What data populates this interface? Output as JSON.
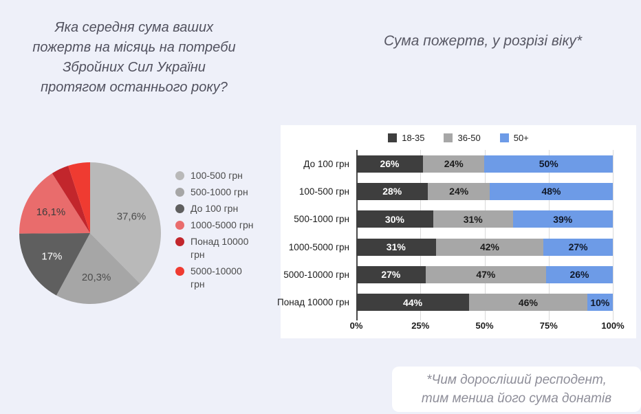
{
  "left_panel": {
    "title_lines": [
      "Яка середня сума ваших",
      "пожертв на місяць на потреби",
      "Збройних Сил України",
      "протягом останнього року?"
    ]
  },
  "right_panel": {
    "title": "Сума пожертв, у розрізі віку*",
    "footnote_lines": [
      "*Чим доросліший респодент,",
      "тим менша його сума донатів"
    ]
  },
  "chart_data": [
    {
      "type": "pie",
      "unit": "%",
      "start_angle_deg": 0,
      "legend_position": "right",
      "slices": [
        {
          "label": "100-500 грн",
          "value": 37.6,
          "display": "37,6%",
          "color": "#b9b9b9",
          "label_color": "#4d4d4d"
        },
        {
          "label": "500-1000 грн",
          "value": 20.3,
          "display": "20,3%",
          "color": "#a6a6a6",
          "label_color": "#4d4d4d"
        },
        {
          "label": "До 100 грн",
          "value": 17,
          "display": "17%",
          "color": "#5f5f5f",
          "label_color": "#ffffff"
        },
        {
          "label": "1000-5000 грн",
          "value": 16.1,
          "display": "16,1%",
          "color": "#e96c6c",
          "label_color": "#3d3d3d"
        },
        {
          "label": "Понад 10000 грн",
          "value": 4,
          "display": "",
          "color": "#c2262c",
          "label_color": ""
        },
        {
          "label": "5000-10000 грн",
          "value": 5,
          "display": "",
          "color": "#ef3b31",
          "label_color": ""
        }
      ]
    },
    {
      "type": "bar",
      "orientation": "horizontal-stacked",
      "legend_position": "top",
      "grid": true,
      "xlim": [
        0,
        100
      ],
      "x_ticks": [
        "0%",
        "25%",
        "50%",
        "75%",
        "100%"
      ],
      "value_suffix": "%",
      "categories": [
        "До 100 грн",
        "100-500 грн",
        "500-1000 грн",
        "1000-5000 грн",
        "5000-10000 грн",
        "Понад 10000 грн"
      ],
      "series": [
        {
          "name": "18-35",
          "color": "#3e3e3e",
          "text_color": "#ffffff",
          "values": [
            26,
            28,
            30,
            31,
            27,
            44
          ]
        },
        {
          "name": "36-50",
          "color": "#a7a7a7",
          "text_color": "#1b1b1b",
          "values": [
            24,
            24,
            31,
            42,
            47,
            46
          ]
        },
        {
          "name": "50+",
          "color": "#6d9be7",
          "text_color": "#101828",
          "values": [
            50,
            48,
            39,
            27,
            26,
            10
          ]
        }
      ]
    }
  ]
}
